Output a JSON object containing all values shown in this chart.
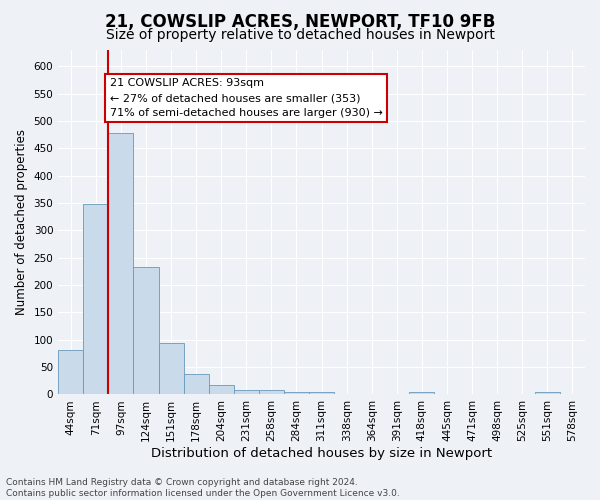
{
  "title1": "21, COWSLIP ACRES, NEWPORT, TF10 9FB",
  "title2": "Size of property relative to detached houses in Newport",
  "xlabel": "Distribution of detached houses by size in Newport",
  "ylabel": "Number of detached properties",
  "categories": [
    "44sqm",
    "71sqm",
    "97sqm",
    "124sqm",
    "151sqm",
    "178sqm",
    "204sqm",
    "231sqm",
    "258sqm",
    "284sqm",
    "311sqm",
    "338sqm",
    "364sqm",
    "391sqm",
    "418sqm",
    "445sqm",
    "471sqm",
    "498sqm",
    "525sqm",
    "551sqm",
    "578sqm"
  ],
  "values": [
    82,
    349,
    478,
    234,
    95,
    37,
    17,
    8,
    8,
    5,
    5,
    0,
    0,
    0,
    5,
    0,
    0,
    0,
    0,
    5,
    0
  ],
  "bar_color": "#c9daea",
  "bar_edge_color": "#6699bb",
  "highlight_line_color": "#cc0000",
  "annotation_text": "21 COWSLIP ACRES: 93sqm\n← 27% of detached houses are smaller (353)\n71% of semi-detached houses are larger (930) →",
  "annotation_box_color": "#ffffff",
  "annotation_box_edge": "#cc0000",
  "ylim": [
    0,
    630
  ],
  "yticks": [
    0,
    50,
    100,
    150,
    200,
    250,
    300,
    350,
    400,
    450,
    500,
    550,
    600
  ],
  "background_color": "#eef2f7",
  "grid_color": "#ffffff",
  "footer_text": "Contains HM Land Registry data © Crown copyright and database right 2024.\nContains public sector information licensed under the Open Government Licence v3.0.",
  "title1_fontsize": 12,
  "title2_fontsize": 10,
  "xlabel_fontsize": 9.5,
  "ylabel_fontsize": 8.5,
  "tick_fontsize": 7.5,
  "annotation_fontsize": 8,
  "footer_fontsize": 6.5
}
